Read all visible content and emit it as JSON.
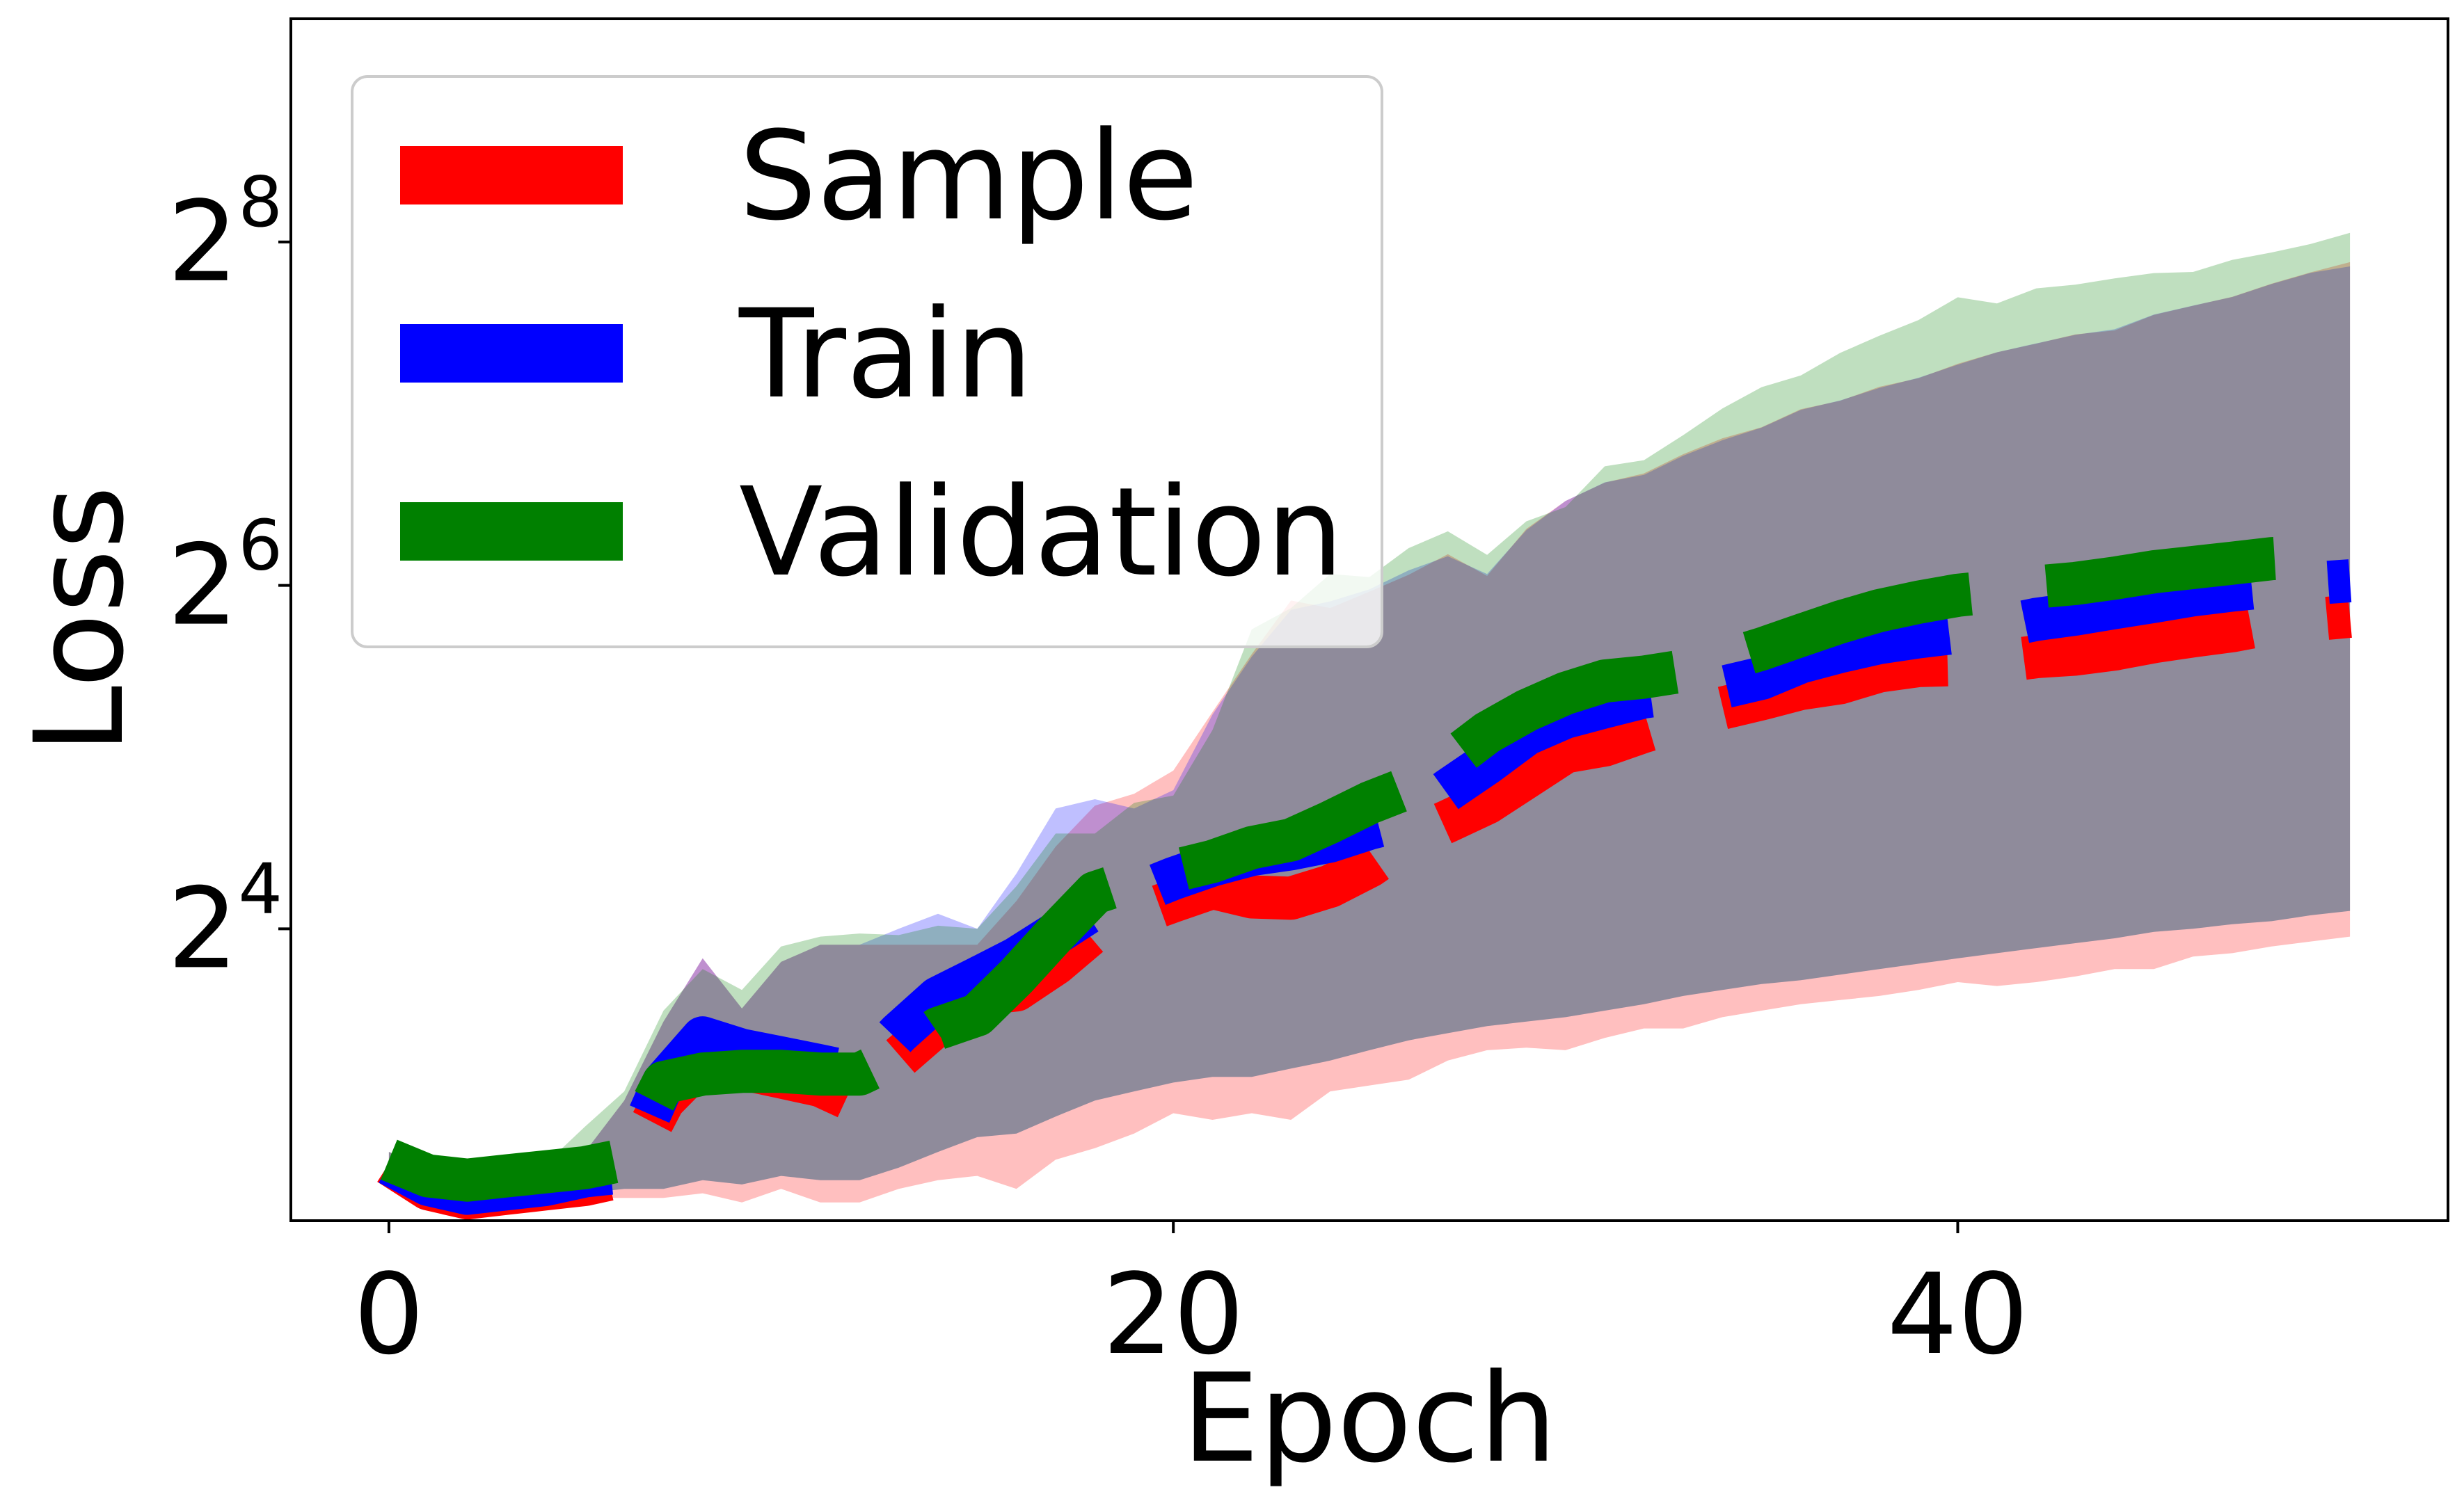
{
  "chart_data": {
    "type": "line",
    "xlabel": "Epoch",
    "ylabel": "Loss",
    "xlim": [
      -2.5,
      52.5
    ],
    "ylim_log2": [
      2.3,
      9.3
    ],
    "y_scale": "log2",
    "x_ticks": [
      0,
      20,
      40
    ],
    "y_ticks": [
      {
        "base": "2",
        "exp": "4",
        "value": 16
      },
      {
        "base": "2",
        "exp": "6",
        "value": 64
      },
      {
        "base": "2",
        "exp": "8",
        "value": 256
      }
    ],
    "grid": false,
    "legend_position": "upper-left",
    "line_style": "dashed",
    "series": [
      {
        "name": "Sample",
        "color": "#ff0000",
        "epochs": [
          0,
          1,
          2,
          3,
          4,
          5,
          6,
          7,
          8,
          9,
          10,
          11,
          12,
          13,
          14,
          15,
          16,
          17,
          18,
          19,
          20,
          21,
          22,
          23,
          24,
          25,
          26,
          27,
          28,
          29,
          30,
          31,
          32,
          33,
          34,
          35,
          36,
          37,
          38,
          39,
          40,
          41,
          42,
          43,
          44,
          45,
          46,
          47,
          48,
          49,
          50
        ],
        "values": [
          6.2,
          5.6,
          5.4,
          5.5,
          5.6,
          5.7,
          5.9,
          8.0,
          9.4,
          9.1,
          8.8,
          8.5,
          7.9,
          9.5,
          10.9,
          12.3,
          12.5,
          13.9,
          15.9,
          16.9,
          17.9,
          18.9,
          18.2,
          18.1,
          19.0,
          20.6,
          23.0,
          24.7,
          26.6,
          29.5,
          32.7,
          33.6,
          35.5,
          37.2,
          39.0,
          40.5,
          42.2,
          43.2,
          45.3,
          46.3,
          46.5,
          47.0,
          48.0,
          48.5,
          49.5,
          51.0,
          52.2,
          53.3,
          54.9,
          55.7,
          56.5
        ],
        "band_lower": [
          6.0,
          5.4,
          5.3,
          5.3,
          5.3,
          5.4,
          5.4,
          5.4,
          5.5,
          5.3,
          5.6,
          5.3,
          5.3,
          5.6,
          5.8,
          5.9,
          5.6,
          6.3,
          6.6,
          7.0,
          7.6,
          7.4,
          7.6,
          7.4,
          8.3,
          8.5,
          8.7,
          9.4,
          9.8,
          9.9,
          9.8,
          10.3,
          10.7,
          10.7,
          11.2,
          11.5,
          11.8,
          12.0,
          12.2,
          12.5,
          12.9,
          12.7,
          12.9,
          13.2,
          13.6,
          13.6,
          14.3,
          14.5,
          14.9,
          15.2,
          15.5
        ],
        "band_upper": [
          6.5,
          6.0,
          5.9,
          5.9,
          6.0,
          6.5,
          8.0,
          11.0,
          14.2,
          11.6,
          14.0,
          15.0,
          15.0,
          15.0,
          15.0,
          15.0,
          17.9,
          22.3,
          26.3,
          27.6,
          30.3,
          38.4,
          48.5,
          60.2,
          58.4,
          62.4,
          66.8,
          72.6,
          66.5,
          80.4,
          90.0,
          96.9,
          100.6,
          108.7,
          115.9,
          121.2,
          130.4,
          134.8,
          142.7,
          147.7,
          156.6,
          164.0,
          169.8,
          176.3,
          179.1,
          190.7,
          197.9,
          205.2,
          216.3,
          226.5,
          236.0
        ]
      },
      {
        "name": "Train",
        "color": "#0000ff",
        "epochs": [
          0,
          1,
          2,
          3,
          4,
          5,
          6,
          7,
          8,
          9,
          10,
          11,
          12,
          13,
          14,
          15,
          16,
          17,
          18,
          19,
          20,
          21,
          22,
          23,
          24,
          25,
          26,
          27,
          28,
          29,
          30,
          31,
          32,
          33,
          34,
          35,
          36,
          37,
          38,
          39,
          40,
          41,
          42,
          43,
          44,
          45,
          46,
          47,
          48,
          49,
          50
        ],
        "values": [
          6.2,
          5.7,
          5.5,
          5.6,
          5.7,
          5.9,
          6.0,
          8.6,
          10.3,
          9.8,
          9.5,
          9.2,
          8.9,
          10.5,
          12.1,
          13.1,
          14.2,
          15.7,
          17.4,
          18.4,
          19.6,
          20.7,
          21.6,
          22.1,
          22.8,
          24.0,
          25.0,
          28.0,
          31.2,
          35.1,
          37.6,
          39.2,
          40.8,
          41.7,
          42.4,
          44.0,
          47.0,
          49.0,
          50.8,
          52.0,
          53.0,
          54.0,
          55.8,
          57.0,
          58.5,
          60.0,
          61.6,
          62.8,
          63.8,
          64.5,
          65.2
        ],
        "band_lower": [
          6.1,
          5.5,
          5.4,
          5.4,
          5.4,
          5.5,
          5.6,
          5.6,
          5.8,
          5.7,
          5.9,
          5.8,
          5.8,
          6.1,
          6.5,
          6.9,
          7.0,
          7.5,
          8.0,
          8.3,
          8.6,
          8.8,
          8.8,
          9.1,
          9.4,
          9.8,
          10.2,
          10.5,
          10.8,
          11.0,
          11.2,
          11.5,
          11.8,
          12.2,
          12.5,
          12.8,
          13.0,
          13.3,
          13.6,
          13.9,
          14.2,
          14.5,
          14.8,
          15.1,
          15.4,
          15.8,
          16.0,
          16.3,
          16.5,
          16.9,
          17.2
        ],
        "band_upper": [
          6.5,
          6.0,
          5.9,
          5.9,
          6.0,
          6.5,
          8.0,
          11.0,
          14.2,
          11.6,
          14.0,
          15.0,
          15.0,
          16.0,
          17.0,
          16.0,
          20.0,
          26.0,
          27.0,
          26.0,
          28.0,
          38.0,
          48.0,
          58.0,
          60.0,
          63.0,
          68.0,
          72.0,
          67.0,
          80.0,
          90.0,
          97.0,
          100.0,
          108.0,
          115.0,
          121.0,
          130.0,
          135.0,
          142.0,
          148.0,
          156.0,
          164.0,
          170.0,
          176.0,
          180.0,
          191.0,
          198.0,
          205.0,
          216.0,
          226.0,
          232.0
        ]
      },
      {
        "name": "Validation",
        "color": "#008000",
        "epochs": [
          0,
          1,
          2,
          3,
          4,
          5,
          6,
          7,
          8,
          9,
          10,
          11,
          12,
          13,
          14,
          15,
          16,
          17,
          18,
          19,
          20,
          21,
          22,
          23,
          24,
          25,
          26,
          27,
          28,
          29,
          30,
          31,
          32,
          33,
          34,
          35,
          36,
          37,
          38,
          39,
          40,
          41,
          42,
          43,
          44,
          45,
          46,
          47,
          48,
          49,
          50
        ],
        "values": [
          6.3,
          5.9,
          5.8,
          5.9,
          6.0,
          6.1,
          6.3,
          8.6,
          8.9,
          9.0,
          9.0,
          8.9,
          8.9,
          9.6,
          10.7,
          11.3,
          13.2,
          15.7,
          18.5,
          19.5,
          20.2,
          21.0,
          22.2,
          22.9,
          24.6,
          26.6,
          28.3,
          31.3,
          35.3,
          38.6,
          41.4,
          43.5,
          44.2,
          45.3,
          47.2,
          49.5,
          52.3,
          55.2,
          57.8,
          59.8,
          61.5,
          62.5,
          63.6,
          64.5,
          65.9,
          67.6,
          68.8,
          70.0,
          71.3,
          72.0,
          73.0
        ],
        "band_lower": [
          6.1,
          5.5,
          5.4,
          5.4,
          5.4,
          5.5,
          5.6,
          5.6,
          5.8,
          5.7,
          5.9,
          5.8,
          5.8,
          6.1,
          6.5,
          6.9,
          7.0,
          7.5,
          8.0,
          8.3,
          8.6,
          8.8,
          8.8,
          9.1,
          9.4,
          9.8,
          10.2,
          10.5,
          10.8,
          11.0,
          11.2,
          11.5,
          11.8,
          12.2,
          12.5,
          12.8,
          13.0,
          13.3,
          13.6,
          13.9,
          14.2,
          14.5,
          14.8,
          15.1,
          15.4,
          15.8,
          16.0,
          16.3,
          16.5,
          16.9,
          17.2
        ],
        "band_upper": [
          6.5,
          6.2,
          6.0,
          6.0,
          6.2,
          7.2,
          8.3,
          11.5,
          13.6,
          12.5,
          14.9,
          15.5,
          15.7,
          15.6,
          16.2,
          16.0,
          19.0,
          23.5,
          23.5,
          26.6,
          27.4,
          35.7,
          53.6,
          58.4,
          67.0,
          66.2,
          74.4,
          79.6,
          72.4,
          82.9,
          87.8,
          103.5,
          106.1,
          117.4,
          130.7,
          142.5,
          149.4,
          163.6,
          175.3,
          186.8,
          204.8,
          199.8,
          212.3,
          215.5,
          221.0,
          225.8,
          226.8,
          238.2,
          245.4,
          253.9,
          265.6
        ]
      }
    ]
  }
}
